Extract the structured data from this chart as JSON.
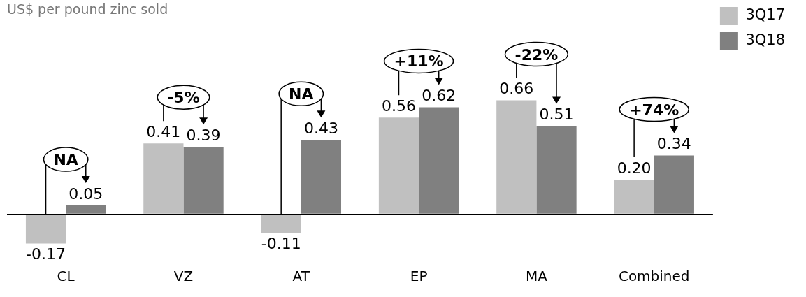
{
  "chart_data": {
    "type": "bar",
    "title": "US$ per pound zinc sold",
    "categories": [
      "CL",
      "VZ",
      "AT",
      "EP",
      "MA",
      "Combined"
    ],
    "series": [
      {
        "name": "3Q17",
        "color": "#c0c0c0",
        "values": [
          -0.17,
          0.41,
          -0.11,
          0.56,
          0.66,
          0.2
        ],
        "value_labels": [
          "-0.17",
          "0.41",
          "-0.11",
          "0.56",
          "0.66",
          "0.20"
        ]
      },
      {
        "name": "3Q18",
        "color": "#808080",
        "values": [
          0.05,
          0.39,
          0.43,
          0.62,
          0.51,
          0.34
        ],
        "value_labels": [
          "0.05",
          "0.39",
          "0.43",
          "0.62",
          "0.51",
          "0.34"
        ]
      }
    ],
    "legend": "right",
    "annotations": [
      "NA",
      "-5%",
      "NA",
      "+11%",
      "-22%",
      "+74%"
    ]
  }
}
